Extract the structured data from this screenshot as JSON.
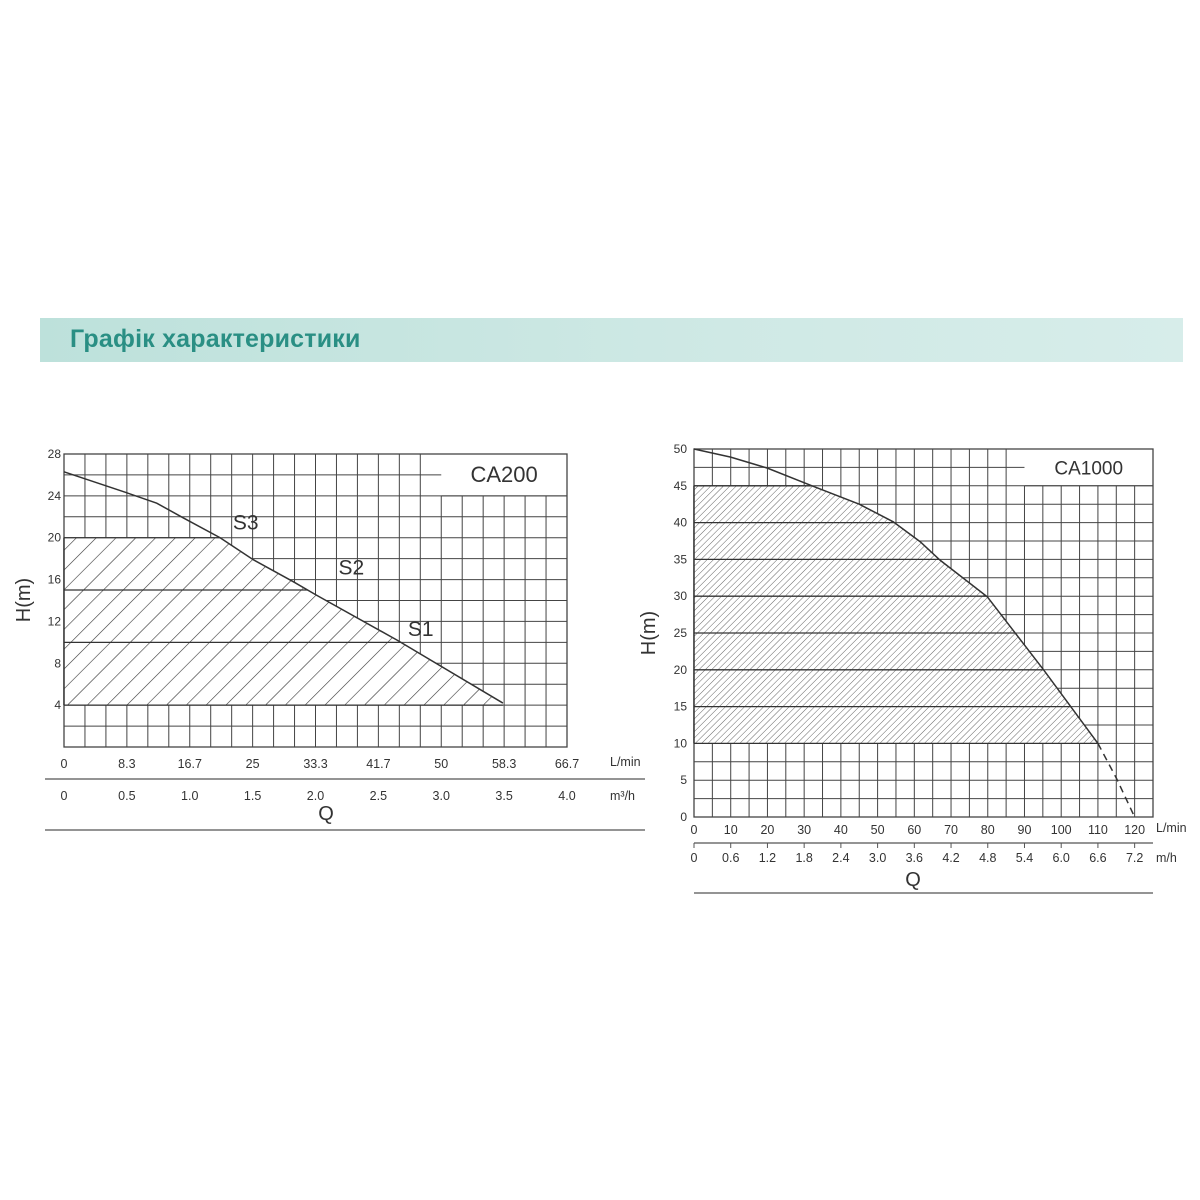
{
  "header": {
    "title": "Графік характеристики"
  },
  "colors": {
    "banner": "#c6e5e0",
    "title": "#2a8f84",
    "lines": "#333333"
  },
  "chart_data": [
    {
      "type": "area",
      "title": "CA200",
      "ylabel": "H(m)",
      "xlabel": "Q",
      "ylim": [
        0,
        28
      ],
      "xlim": [
        0,
        66.7
      ],
      "grid": true,
      "y_ticks": [
        "4",
        "8",
        "12",
        "16",
        "20",
        "24",
        "28"
      ],
      "x_ticks": [
        "0",
        "8.3",
        "16.7",
        "25",
        "33.3",
        "41.7",
        "50",
        "58.3",
        "66.7"
      ],
      "x_unit": "L/min",
      "x2_ticks": [
        "0",
        "0.5",
        "1.0",
        "1.5",
        "2.0",
        "2.5",
        "3.0",
        "3.5",
        "4.0"
      ],
      "x2_unit": "m³/h",
      "curve": [
        [
          0,
          26.3
        ],
        [
          8.3,
          24.3
        ],
        [
          12.3,
          23.3
        ],
        [
          15.8,
          21.9
        ],
        [
          20.7,
          20.0
        ],
        [
          25.1,
          17.9
        ],
        [
          30.4,
          15.8
        ],
        [
          33.5,
          14.5
        ],
        [
          44.2,
          10.2
        ],
        [
          58.2,
          4.2
        ]
      ],
      "curve_dashed": [],
      "hatched_min_head": 4,
      "hatched_max_head": 20,
      "band_lines": [
        20,
        15,
        10,
        4
      ],
      "curve_labels": [
        {
          "text": "S3",
          "x": 22.4,
          "y": 20.8
        },
        {
          "text": "S2",
          "x": 36.4,
          "y": 16.5
        },
        {
          "text": "S1",
          "x": 45.6,
          "y": 10.6
        }
      ]
    },
    {
      "type": "area",
      "title": "CA1000",
      "ylabel": "H(m)",
      "xlabel": "Q",
      "ylim": [
        0,
        50
      ],
      "xlim": [
        0,
        125
      ],
      "grid": true,
      "y_ticks": [
        "0",
        "5",
        "10",
        "15",
        "20",
        "25",
        "30",
        "35",
        "40",
        "45",
        "50"
      ],
      "x_ticks": [
        "0",
        "10",
        "20",
        "30",
        "40",
        "50",
        "60",
        "70",
        "80",
        "90",
        "100",
        "110",
        "120"
      ],
      "x_unit": "L/min",
      "x2_ticks": [
        "0",
        "0.6",
        "1.2",
        "1.8",
        "2.4",
        "3.0",
        "3.6",
        "4.2",
        "4.8",
        "5.4",
        "6.0",
        "6.6",
        "7.2"
      ],
      "x2_unit": "m/h",
      "curve": [
        [
          0,
          50
        ],
        [
          10,
          48.9
        ],
        [
          20,
          47.4
        ],
        [
          31.6,
          45.1
        ],
        [
          45,
          42.5
        ],
        [
          54.3,
          40.1
        ],
        [
          61.6,
          37.4
        ],
        [
          67,
          34.9
        ],
        [
          79.9,
          29.9
        ],
        [
          95.2,
          20
        ],
        [
          110,
          10
        ]
      ],
      "curve_dashed": [
        [
          110,
          10
        ],
        [
          115,
          5.3
        ],
        [
          120,
          0
        ]
      ],
      "hatched_min_head": 10,
      "hatched_max_head": 45,
      "band_lines": [
        45,
        40,
        35,
        30,
        25,
        20,
        15,
        10
      ],
      "curve_labels": []
    }
  ]
}
